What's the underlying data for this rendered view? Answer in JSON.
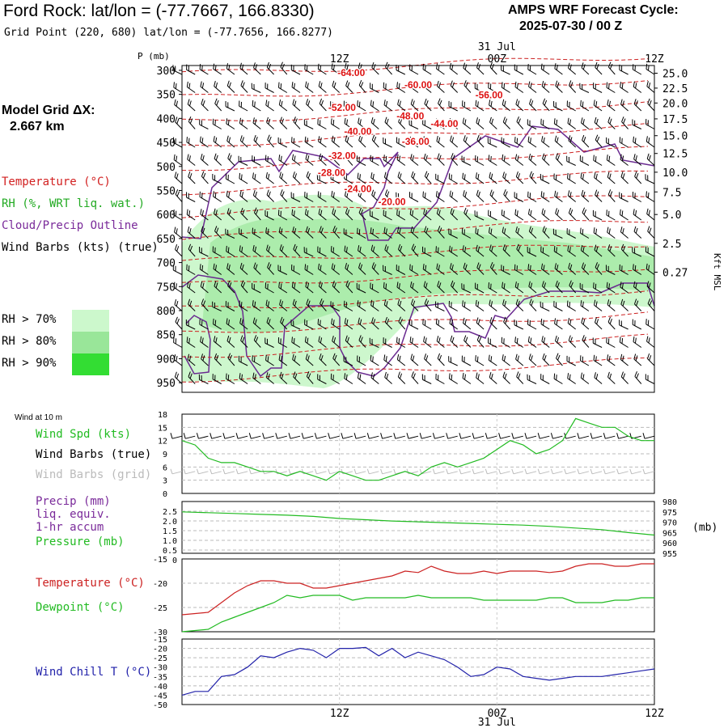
{
  "header": {
    "title": "Ford Rock:  lat/lon = (-77.7667, 166.8330)",
    "subtitle": "Grid Point (220, 680) lat/lon = (-77.7656, 166.8277)",
    "cycle_line1": "AMPS WRF Forecast Cycle:",
    "cycle_line2": "2025-07-30 / 00  Z"
  },
  "sidebar": {
    "model_grid_line1": "Model Grid ΔX:",
    "model_grid_line2": "2.667 km",
    "legend": [
      {
        "label": "Temperature (°C)",
        "color": "#d22020"
      },
      {
        "label": "RH (%, WRT liq. wat.)",
        "color": "#22aa22"
      },
      {
        "label": "Cloud/Precip Outline",
        "color": "#7a2a9a"
      },
      {
        "label": "Wind Barbs (kts) (true)",
        "color": "#000000"
      }
    ],
    "rh_keys": [
      {
        "label": "RH > 70%",
        "color": "#ccf8cc"
      },
      {
        "label": "RH > 80%",
        "color": "#99e699"
      },
      {
        "label": "RH > 90%",
        "color": "#33dd33"
      }
    ]
  },
  "time_axis": {
    "ticks": [
      "12Z",
      "00Z",
      "12Z"
    ],
    "date_label": "31 Jul"
  },
  "chart_data": [
    {
      "type": "heatmap",
      "name": "cross-section",
      "y_axis_title": "P (mb)",
      "pressure_ticks": [
        300,
        350,
        400,
        450,
        500,
        550,
        600,
        650,
        700,
        750,
        800,
        850,
        900,
        950
      ],
      "right_axis_title": "Kft MSL",
      "height_ticks": [
        "25.0",
        "22.5",
        "20.0",
        "17.5",
        "15.0",
        "12.5",
        "10.0",
        "7.5",
        "5.0",
        "2.5",
        "0.27"
      ],
      "height_tick_pressures": [
        306,
        337,
        368,
        401,
        436,
        473,
        512,
        553,
        600,
        660,
        720
      ],
      "temperature_labels": [
        {
          "text": "-64.00",
          "hours": 12.9,
          "p": 312
        },
        {
          "text": "-60.00",
          "hours": 18.0,
          "p": 337
        },
        {
          "text": "-56.00",
          "hours": 23.4,
          "p": 358
        },
        {
          "text": "-52.00",
          "hours": 12.2,
          "p": 384
        },
        {
          "text": "-48.00",
          "hours": 17.4,
          "p": 402
        },
        {
          "text": "-44.00",
          "hours": 20.0,
          "p": 418
        },
        {
          "text": "-40.00",
          "hours": 13.4,
          "p": 434
        },
        {
          "text": "-36.00",
          "hours": 17.8,
          "p": 455
        },
        {
          "text": "-32.00",
          "hours": 12.2,
          "p": 484
        },
        {
          "text": "-28.00",
          "hours": 11.4,
          "p": 520
        },
        {
          "text": "-24.00",
          "hours": 13.4,
          "p": 553
        },
        {
          "text": "-20.00",
          "hours": 16.0,
          "p": 580
        }
      ]
    },
    {
      "type": "line",
      "name": "wind",
      "panel_label": "Wind at 10 m",
      "y_labels": [
        "18",
        "15",
        "12",
        "9",
        "6",
        "3",
        "0"
      ],
      "ylim": [
        0,
        18
      ],
      "x": [
        0,
        1,
        2,
        3,
        4,
        5,
        6,
        7,
        8,
        9,
        10,
        11,
        12,
        13,
        14,
        15,
        16,
        17,
        18,
        19,
        20,
        21,
        22,
        23,
        24,
        25,
        26,
        27,
        28,
        29,
        30,
        31,
        32,
        33,
        34,
        35,
        36
      ],
      "series": [
        {
          "name": "Wind Spd (kts)",
          "color": "#22bb22",
          "values": [
            12,
            11,
            8,
            7,
            7,
            6,
            5,
            5,
            4,
            5,
            4,
            3,
            5,
            4,
            3,
            3,
            4,
            5,
            4,
            6,
            7,
            6,
            7,
            8,
            10,
            12,
            11,
            9,
            10,
            12,
            17,
            16,
            15,
            15,
            13,
            12,
            12
          ]
        }
      ],
      "side_labels": [
        {
          "text": "Wind Spd (kts)",
          "color": "#22bb22"
        },
        {
          "text": "Wind Barbs (true)",
          "color": "#000000"
        },
        {
          "text": "Wind Barbs (grid)",
          "color": "#bbbbbb"
        }
      ]
    },
    {
      "type": "line",
      "name": "precip-pressure",
      "y_labels": [
        "2.5",
        "2.0",
        "1.5",
        "1.0",
        "0.5",
        "0"
      ],
      "right_labels": [
        "980",
        "975",
        "970",
        "965",
        "960",
        "955"
      ],
      "right_unit": "(mb)",
      "ylim_right": [
        955,
        980
      ],
      "x": [
        0,
        2,
        4,
        6,
        8,
        10,
        12,
        14,
        16,
        18,
        20,
        22,
        24,
        26,
        28,
        30,
        32,
        34,
        36
      ],
      "series": [
        {
          "name": "Pressure (mb)",
          "color": "#22bb22",
          "values": [
            975.0,
            974.6,
            974.2,
            973.8,
            973.4,
            972.8,
            971.8,
            971.2,
            970.6,
            970.2,
            969.8,
            969.4,
            969.0,
            968.6,
            968.0,
            967.2,
            966.4,
            965.0,
            963.8
          ]
        }
      ],
      "side_labels": [
        {
          "text": "Precip (mm)",
          "color": "#7a2a9a"
        },
        {
          "text": "liq. equiv.",
          "color": "#7a2a9a"
        },
        {
          "text": "1-hr accum",
          "color": "#7a2a9a"
        },
        {
          "text": "Pressure (mb)",
          "color": "#22bb22"
        }
      ]
    },
    {
      "type": "line",
      "name": "temperature-dewpoint",
      "y_labels": [
        "-15",
        "-20",
        "-25",
        "-30"
      ],
      "ylim": [
        -30,
        -15
      ],
      "x": [
        0,
        2,
        3,
        4,
        5,
        6,
        7,
        8,
        9,
        10,
        11,
        12,
        13,
        14,
        15,
        16,
        17,
        18,
        19,
        20,
        21,
        22,
        23,
        24,
        25,
        26,
        27,
        28,
        29,
        30,
        31,
        32,
        33,
        34,
        35,
        36
      ],
      "series": [
        {
          "name": "Temperature (°C)",
          "color": "#cc2222",
          "values": [
            -26.5,
            -26,
            -24,
            -22,
            -20.5,
            -19.5,
            -19.5,
            -20,
            -20,
            -21,
            -21,
            -20.5,
            -20,
            -19.5,
            -19,
            -18.5,
            -17.5,
            -17.8,
            -16.5,
            -17.5,
            -18,
            -18,
            -17.5,
            -18,
            -17.5,
            -17.5,
            -17.5,
            -17.8,
            -17.5,
            -16.5,
            -16,
            -16,
            -16.5,
            -16.5,
            -16,
            -16
          ]
        },
        {
          "name": "Dewpoint (°C)",
          "color": "#22bb22",
          "values": [
            -30,
            -29.5,
            -28,
            -27,
            -26,
            -25,
            -24,
            -22.5,
            -23,
            -22.5,
            -22.5,
            -22.5,
            -23.5,
            -23,
            -23,
            -23,
            -23,
            -22.5,
            -23,
            -23,
            -23,
            -23,
            -23.5,
            -23.5,
            -23.5,
            -23.5,
            -23.5,
            -23,
            -23,
            -24,
            -24,
            -24,
            -23.5,
            -23.5,
            -23,
            -23
          ]
        }
      ],
      "side_labels": [
        {
          "text": "Temperature (°C)",
          "color": "#cc2222"
        },
        {
          "text": "Dewpoint (°C)",
          "color": "#22bb22"
        }
      ]
    },
    {
      "type": "line",
      "name": "wind-chill",
      "y_labels": [
        "-15",
        "-20",
        "-25",
        "-30",
        "-35",
        "-40",
        "-45",
        "-50"
      ],
      "ylim": [
        -50,
        -15
      ],
      "x": [
        0,
        1,
        2,
        3,
        4,
        5,
        6,
        7,
        8,
        9,
        10,
        11,
        12,
        13,
        14,
        15,
        16,
        17,
        18,
        19,
        20,
        21,
        22,
        23,
        24,
        25,
        26,
        27,
        28,
        29,
        30,
        31,
        32,
        33,
        34,
        35,
        36
      ],
      "series": [
        {
          "name": "Wind Chill T (°C)",
          "color": "#2222aa",
          "values": [
            -45,
            -43,
            -43,
            -35,
            -34,
            -30,
            -24,
            -25,
            -22,
            -20,
            -21,
            -25,
            -20,
            -20,
            -19.5,
            -24,
            -20,
            -25,
            -22,
            -24,
            -26,
            -30,
            -35,
            -34,
            -30,
            -31,
            -35,
            -36,
            -37,
            -36,
            -35,
            -35,
            -35,
            -34,
            -33,
            -32,
            -31
          ]
        }
      ],
      "side_labels": [
        {
          "text": "Wind Chill T (°C)",
          "color": "#2222aa"
        }
      ]
    }
  ]
}
